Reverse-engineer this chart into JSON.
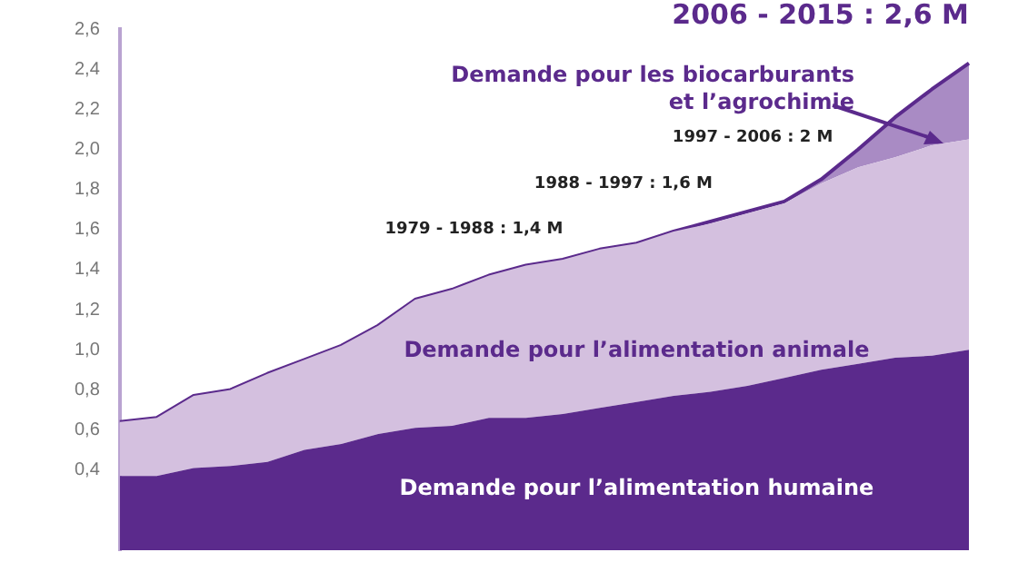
{
  "chart_data": {
    "type": "area",
    "stacked": true,
    "legend": false,
    "grid": false,
    "marker": "none",
    "tick_labels": "y",
    "categories": [
      null,
      null,
      null,
      null,
      null,
      null,
      null,
      null,
      null,
      null,
      null,
      null,
      null,
      null,
      null,
      null,
      null,
      null,
      null,
      null,
      null,
      null,
      null,
      null
    ],
    "ylim": [
      0,
      2.6
    ],
    "yticks": [
      {
        "value": 0.4,
        "label": "0,4"
      },
      {
        "value": 0.6,
        "label": "0,6"
      },
      {
        "value": 0.8,
        "label": "0,8"
      },
      {
        "value": 1.0,
        "label": "1,0"
      },
      {
        "value": 1.2,
        "label": "1,2"
      },
      {
        "value": 1.4,
        "label": "1,4"
      },
      {
        "value": 1.6,
        "label": "1,6"
      },
      {
        "value": 1.8,
        "label": "1,8"
      },
      {
        "value": 2.0,
        "label": "2,0"
      },
      {
        "value": 2.2,
        "label": "2,2"
      },
      {
        "value": 2.4,
        "label": "2,4"
      },
      {
        "value": 2.6,
        "label": "2,6"
      }
    ],
    "series": [
      {
        "name": "Demande pour l’alimentation humaine",
        "color": "#5b2a8c",
        "values": [
          0.37,
          0.37,
          0.41,
          0.42,
          0.44,
          0.5,
          0.53,
          0.58,
          0.61,
          0.62,
          0.66,
          0.66,
          0.68,
          0.71,
          0.74,
          0.77,
          0.79,
          0.82,
          0.86,
          0.9,
          0.93,
          0.96,
          0.97,
          1.0
        ]
      },
      {
        "name": "Demande pour l’alimentation animale",
        "color": "#d4c0df",
        "values": [
          0.27,
          0.29,
          0.36,
          0.38,
          0.44,
          0.45,
          0.49,
          0.54,
          0.64,
          0.68,
          0.71,
          0.76,
          0.77,
          0.79,
          0.79,
          0.82,
          0.84,
          0.86,
          0.87,
          0.93,
          0.98,
          1.0,
          1.05,
          1.05
        ]
      },
      {
        "name": "Demande pour les biocarburants et l’agrochimie",
        "color": "#a98bc4",
        "values": [
          0,
          0,
          0,
          0,
          0,
          0,
          0,
          0,
          0,
          0,
          0,
          0,
          0,
          0,
          0,
          0,
          0.01,
          0.01,
          0.01,
          0.02,
          0.09,
          0.2,
          0.28,
          0.38
        ]
      }
    ],
    "annotations": [
      "1979 - 1988 : 1,4 M",
      "1988 - 1997 : 1,6 M",
      "1997 - 2006 : 2 M",
      "2006 - 2015 : 2,6 M"
    ]
  }
}
